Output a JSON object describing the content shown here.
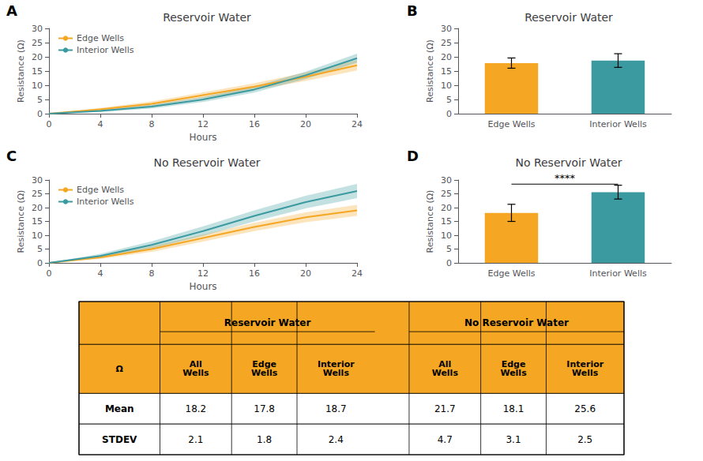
{
  "chart_data": [
    {
      "type": "line",
      "label": "A",
      "title": "Reservoir Water",
      "xlabel": "Hours",
      "ylabel": "Resistance (Ω)",
      "x": [
        0,
        4,
        8,
        12,
        16,
        20,
        24
      ],
      "series": [
        {
          "name": "Edge Wells",
          "color": "#F5A623",
          "values": [
            0,
            1.5,
            3.5,
            6.5,
            9.5,
            13.0,
            17.0
          ],
          "errors": [
            0,
            0.5,
            0.8,
            1.0,
            1.2,
            1.5,
            1.8
          ]
        },
        {
          "name": "Interior Wells",
          "color": "#3A9AA0",
          "values": [
            0,
            1.0,
            2.5,
            5.0,
            8.5,
            13.5,
            19.5
          ],
          "errors": [
            0,
            0.4,
            0.7,
            0.9,
            1.1,
            1.3,
            1.6
          ]
        }
      ],
      "xlim": [
        0,
        24
      ],
      "xticks": [
        0,
        4,
        8,
        12,
        16,
        20,
        24
      ],
      "ylim": [
        0,
        30
      ],
      "yticks": [
        0,
        5,
        10,
        15,
        20,
        25,
        30
      ],
      "grid": false,
      "legend": "upper left"
    },
    {
      "type": "bar",
      "label": "B",
      "title": "Reservoir Water",
      "ylabel": "Resistance (Ω)",
      "categories": [
        "Edge Wells",
        "Interior Wells"
      ],
      "values": [
        17.8,
        18.7
      ],
      "errors": [
        1.8,
        2.4
      ],
      "colors": [
        "#F5A623",
        "#3A9AA0"
      ],
      "ylim": [
        0,
        30
      ],
      "yticks": [
        0,
        5,
        10,
        15,
        20,
        25,
        30
      ],
      "grid": false
    },
    {
      "type": "line",
      "label": "C",
      "title": "No Reservoir Water",
      "xlabel": "Hours",
      "ylabel": "Resistance (Ω)",
      "x": [
        0,
        4,
        8,
        12,
        16,
        20,
        24
      ],
      "series": [
        {
          "name": "Edge Wells",
          "color": "#F5A623",
          "values": [
            0,
            2.0,
            5.0,
            9.0,
            13.0,
            16.5,
            19.0
          ],
          "errors": [
            0,
            0.6,
            1.0,
            1.3,
            1.5,
            1.8,
            2.0
          ]
        },
        {
          "name": "Interior Wells",
          "color": "#3A9AA0",
          "values": [
            0,
            2.5,
            6.5,
            11.5,
            17.0,
            22.0,
            26.0
          ],
          "errors": [
            0,
            0.8,
            1.3,
            1.7,
            2.0,
            2.3,
            2.6
          ]
        }
      ],
      "xlim": [
        0,
        24
      ],
      "xticks": [
        0,
        4,
        8,
        12,
        16,
        20,
        24
      ],
      "ylim": [
        0,
        30
      ],
      "yticks": [
        0,
        5,
        10,
        15,
        20,
        25,
        30
      ],
      "grid": false,
      "legend": "upper left"
    },
    {
      "type": "bar",
      "label": "D",
      "title": "No Reservoir Water",
      "ylabel": "Resistance (Ω)",
      "categories": [
        "Edge Wells",
        "Interior Wells"
      ],
      "values": [
        18.1,
        25.6
      ],
      "errors": [
        3.1,
        2.5
      ],
      "colors": [
        "#F5A623",
        "#3A9AA0"
      ],
      "ylim": [
        0,
        30
      ],
      "yticks": [
        0,
        5,
        10,
        15,
        20,
        25,
        30
      ],
      "grid": false,
      "annotations": [
        {
          "text": "****",
          "from": "Edge Wells",
          "to": "Interior Wells",
          "y": 28.5
        }
      ]
    },
    {
      "type": "table",
      "corner": "Ω",
      "header_color": "#F5A623",
      "groups": [
        {
          "title": "Reservoir Water",
          "columns": [
            "All\nWells",
            "Edge\nWells",
            "Interior\nWells"
          ]
        },
        {
          "title": "No Reservoir Water",
          "columns": [
            "All\nWells",
            "Edge\nWells",
            "Interior\nWells"
          ]
        }
      ],
      "rows": [
        {
          "label": "Mean",
          "values": [
            [
              18.2,
              17.8,
              18.7
            ],
            [
              21.7,
              18.1,
              25.6
            ]
          ]
        },
        {
          "label": "STDEV",
          "values": [
            [
              2.1,
              1.8,
              2.4
            ],
            [
              4.7,
              3.1,
              2.5
            ]
          ]
        }
      ]
    }
  ]
}
